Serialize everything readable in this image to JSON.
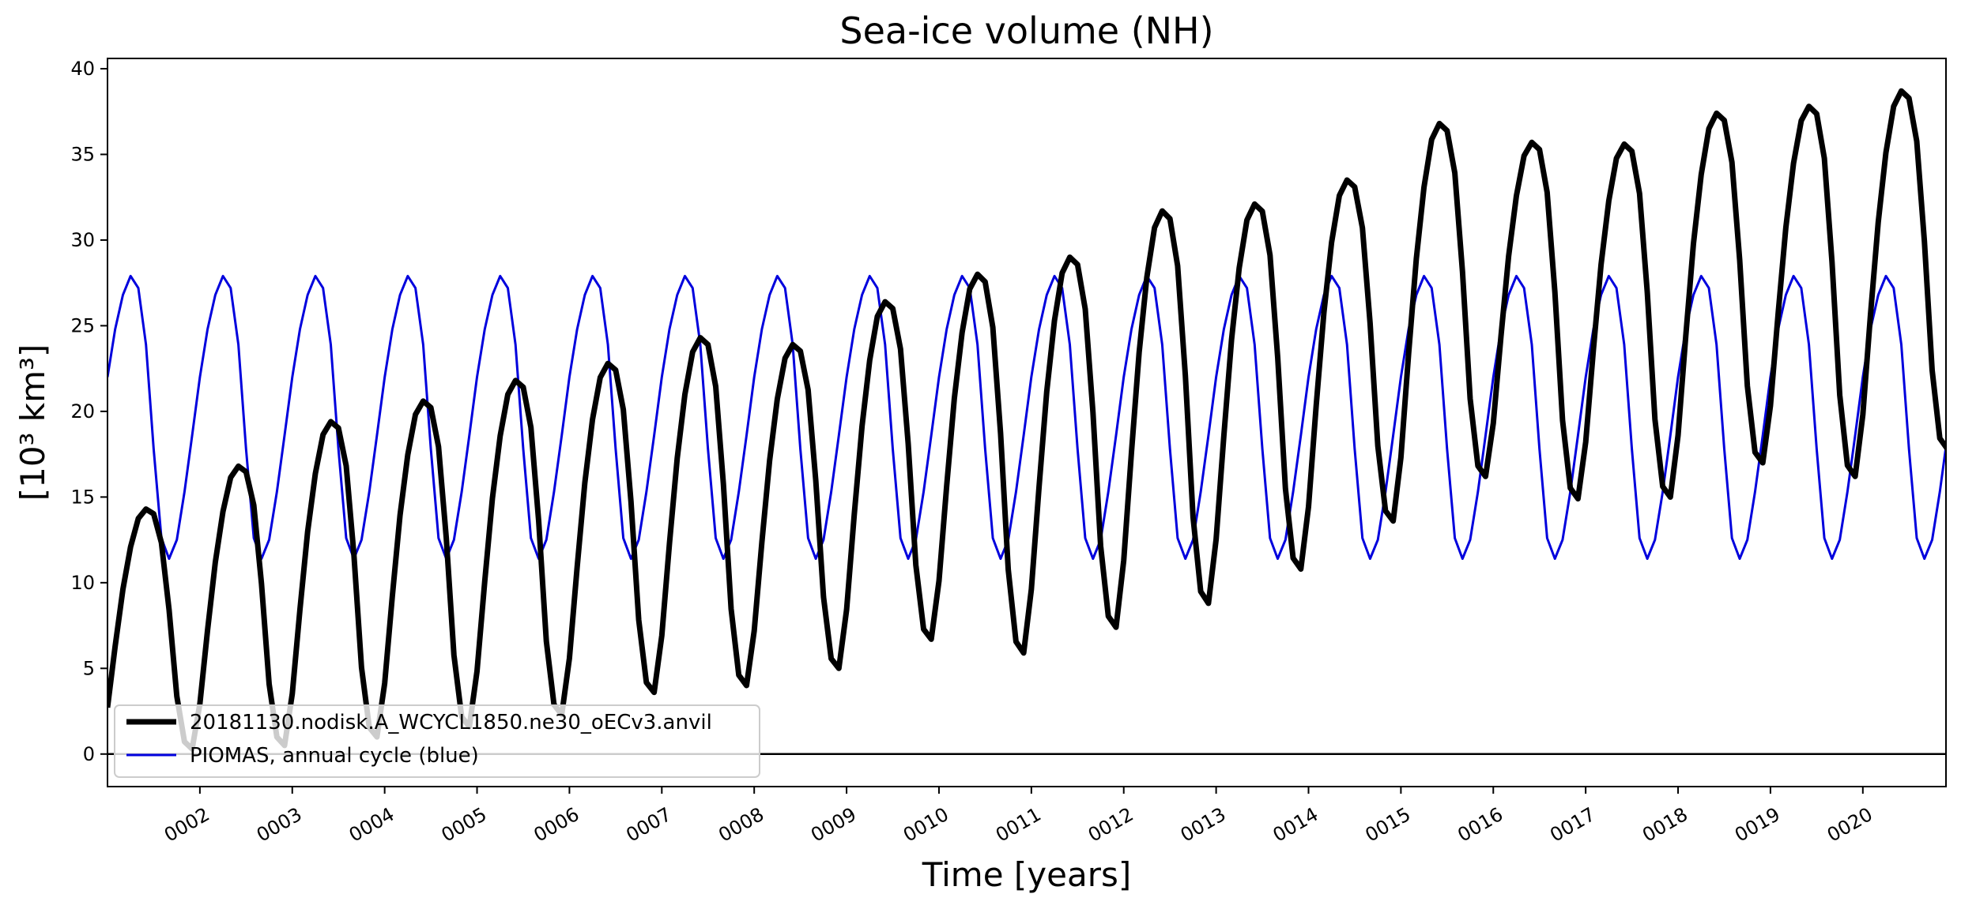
{
  "chart_data": {
    "type": "line",
    "title": "Sea-ice volume (NH)",
    "xlabel": "Time [years]",
    "ylabel": "[10³ km³]",
    "xlim": [
      1.0,
      20.9
    ],
    "ylim": [
      -1.9,
      40.6
    ],
    "yticks": [
      0,
      5,
      10,
      15,
      20,
      25,
      30,
      35,
      40
    ],
    "xtick_labels": [
      "0002",
      "0003",
      "0004",
      "0005",
      "0006",
      "0007",
      "0008",
      "0009",
      "0010",
      "0011",
      "0012",
      "0013",
      "0014",
      "0015",
      "0016",
      "0017",
      "0018",
      "0019",
      "0020"
    ],
    "xtick_values": [
      2,
      3,
      4,
      5,
      6,
      7,
      8,
      9,
      10,
      11,
      12,
      13,
      14,
      15,
      16,
      17,
      18,
      19,
      20
    ],
    "zero_line": 0,
    "legend_position": "lower-left",
    "model_seasonal_shape": [
      0.16,
      0.42,
      0.66,
      0.84,
      0.96,
      1.0,
      0.98,
      0.86,
      0.58,
      0.22,
      0.03,
      0.0
    ],
    "series": [
      {
        "name": "20181130.nodisk.A_WCYCL1850.ne30_oECv3.anvil",
        "color": "#000000",
        "annual_max": [
          14.3,
          16.8,
          19.4,
          20.6,
          21.8,
          22.8,
          24.3,
          23.9,
          26.4,
          28.0,
          29.0,
          31.7,
          32.1,
          33.5,
          36.8,
          35.7,
          35.6,
          37.4,
          37.8,
          38.7
        ],
        "annual_min": [
          0.3,
          0.5,
          1.0,
          1.6,
          2.3,
          3.6,
          4.0,
          5.0,
          6.7,
          5.9,
          7.4,
          8.8,
          10.8,
          13.6,
          16.2,
          14.9,
          15.0,
          17.0,
          16.2,
          17.8
        ]
      },
      {
        "name": "PIOMAS, annual cycle (blue)",
        "color": "#0000dd",
        "annual_cycle": [
          22.0,
          24.8,
          26.8,
          27.9,
          27.2,
          23.9,
          17.8,
          12.6,
          11.4,
          12.5,
          15.3,
          18.6
        ]
      }
    ]
  }
}
